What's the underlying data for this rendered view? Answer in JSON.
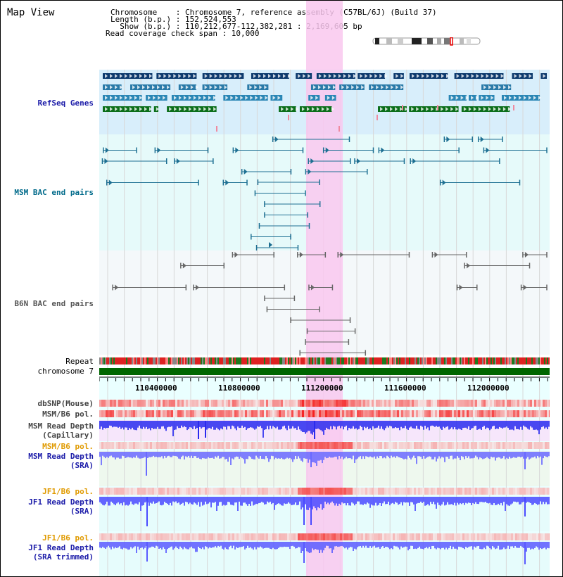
{
  "view": {
    "title": "Map View",
    "info_lines": [
      "Chromosome    : Chromosome 7, reference assembly (C57BL/6J) (Build 37)",
      "Length (b.p.) : 152,524,553",
      "  Show (b.p.) : 110,212,677-112,382,281 : 2,169,605 bp",
      "Read coverage check span : 10,000"
    ]
  },
  "tracks": {
    "refseq": "RefSeq Genes",
    "msm_bac": "MSM BAC end pairs",
    "b6n_bac": "B6N BAC end pairs",
    "repeat": "Repeat",
    "chromosome": "chromosome 7",
    "dbsnp": "dbSNP(Mouse)",
    "msm_b6_pol_1": "MSM/B6 pol.",
    "msm_depth_cap": "MSM Read Depth\n(Capillary)",
    "msm_b6_pol_2": "MSM/B6 pol.",
    "msm_depth_sra": "MSM Read Depth\n(SRA)",
    "jf1_b6_pol_1": "JF1/B6 pol.",
    "jf1_depth_sra": "JF1 Read Depth\n(SRA)",
    "jf1_b6_pol_2": "JF1/B6 pol.",
    "jf1_depth_trim": "JF1 Read Depth\n(SRA trimmed)"
  },
  "axis": {
    "ticks": [
      "110400000",
      "110800000",
      "111200000",
      "111600000",
      "112000000"
    ]
  },
  "colors": {
    "refseq_bg": "#d8eefb",
    "msm_bg": "#e6fafa",
    "b6n_bg": "#f4f8fa",
    "highlight": "#f9c8ee",
    "label_blue": "#1a1aa8",
    "label_teal": "#006a8a",
    "label_orange": "#e09a00",
    "depth_blue": "#3030ff",
    "chrom_green": "#006600",
    "repeat_red": "#dd2222"
  }
}
